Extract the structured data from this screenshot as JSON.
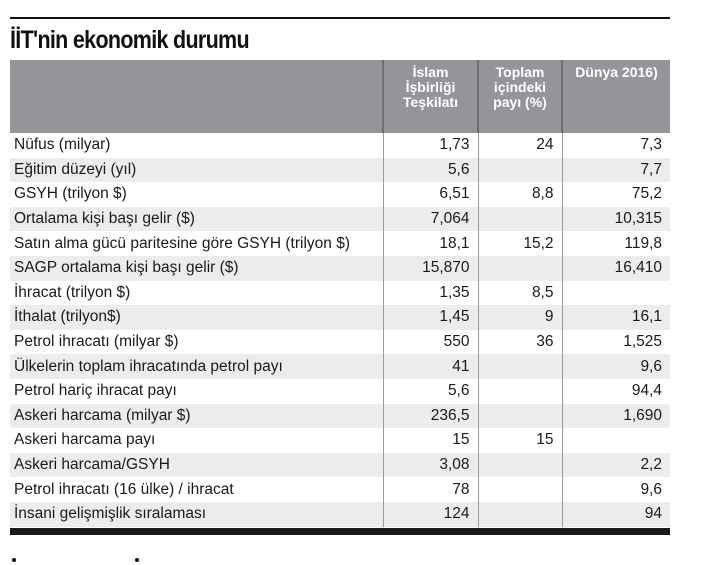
{
  "title": "İİT'nin ekonomik durumu",
  "columns": [
    "",
    "İslam İşbirliği Teşkilatı",
    "Toplam içindeki payı (%)",
    "Dünya 2016)"
  ],
  "rows": [
    {
      "label": "Nüfus (milyar)",
      "iit": "1,73",
      "share": "24",
      "world": "7,3"
    },
    {
      "label": "Eğitim düzeyi (yıl)",
      "iit": "5,6",
      "share": "",
      "world": "7,7"
    },
    {
      "label": "GSYH (trilyon $)",
      "iit": "6,51",
      "share": "8,8",
      "world": "75,2"
    },
    {
      "label": "Ortalama kişi başı gelir ($)",
      "iit": "7,064",
      "share": "",
      "world": "10,315"
    },
    {
      "label": "Satın alma gücü paritesine göre GSYH (trilyon $)",
      "iit": "18,1",
      "share": "15,2",
      "world": "119,8"
    },
    {
      "label": "SAGP ortalama kişi başı gelir ($)",
      "iit": "15,870",
      "share": "",
      "world": "16,410"
    },
    {
      "label": "İhracat (trilyon $)",
      "iit": "1,35",
      "share": "8,5",
      "world": ""
    },
    {
      "label": "İthalat (trilyon$)",
      "iit": "1,45",
      "share": "9",
      "world": "16,1"
    },
    {
      "label": "Petrol ihracatı (milyar $)",
      "iit": "550",
      "share": "36",
      "world": "1,525"
    },
    {
      "label": "Ülkelerin toplam ihracatında petrol payı",
      "iit": "41",
      "share": "",
      "world": "9,6"
    },
    {
      "label": "Petrol hariç ihracat payı",
      "iit": "5,6",
      "share": "",
      "world": "94,4"
    },
    {
      "label": "Askeri harcama (milyar $)",
      "iit": "236,5",
      "share": "",
      "world": "1,690"
    },
    {
      "label": "Askeri harcama payı",
      "iit": "15",
      "share": "15",
      "world": ""
    },
    {
      "label": "Askeri harcama/GSYH",
      "iit": "3,08",
      "share": "",
      "world": "2,2"
    },
    {
      "label": "Petrol ihracatı (16 ülke) / ihracat",
      "iit": "78",
      "share": "",
      "world": "9,6"
    },
    {
      "label": "İnsani gelişmişlik sıralaması",
      "iit": "124",
      "share": "",
      "world": "94"
    }
  ]
}
